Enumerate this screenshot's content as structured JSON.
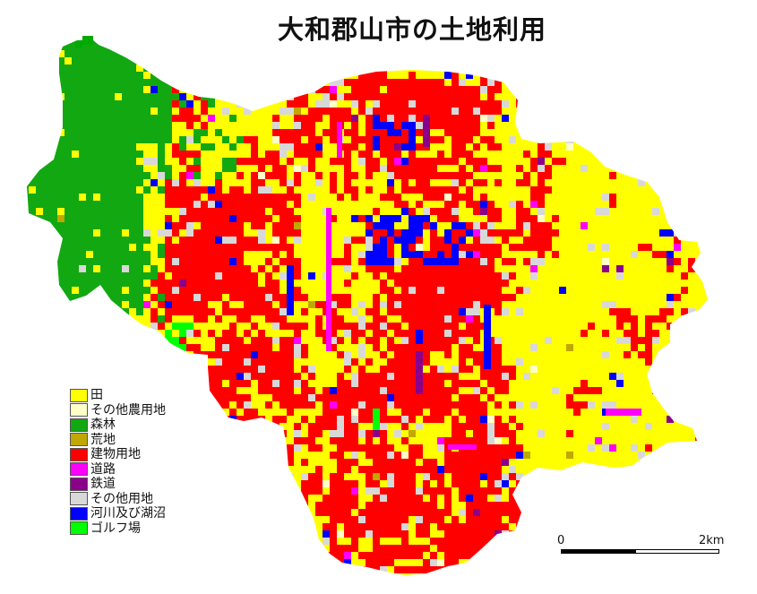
{
  "title": "大和郡山市の土地利用",
  "legend": [
    {
      "label": "田",
      "color": "#ffff00",
      "icon": "paddy-swatch"
    },
    {
      "label": "その他農用地",
      "color": "#ffffc8",
      "icon": "other-farmland-swatch"
    },
    {
      "label": "森林",
      "color": "#12a812",
      "icon": "forest-swatch"
    },
    {
      "label": "荒地",
      "color": "#c0a800",
      "icon": "wasteland-swatch"
    },
    {
      "label": "建物用地",
      "color": "#ff0000",
      "icon": "building-land-swatch"
    },
    {
      "label": "道路",
      "color": "#ff00ff",
      "icon": "road-swatch"
    },
    {
      "label": "鉄道",
      "color": "#8b008b",
      "icon": "railway-swatch"
    },
    {
      "label": "その他用地",
      "color": "#d8d8d8",
      "icon": "other-land-swatch"
    },
    {
      "label": "河川及び湖沼",
      "color": "#0000ff",
      "icon": "river-lake-swatch"
    },
    {
      "label": "ゴルフ場",
      "color": "#00ff00",
      "icon": "golf-course-swatch"
    }
  ],
  "scale": {
    "start_label": "0",
    "end_label": "2km"
  }
}
